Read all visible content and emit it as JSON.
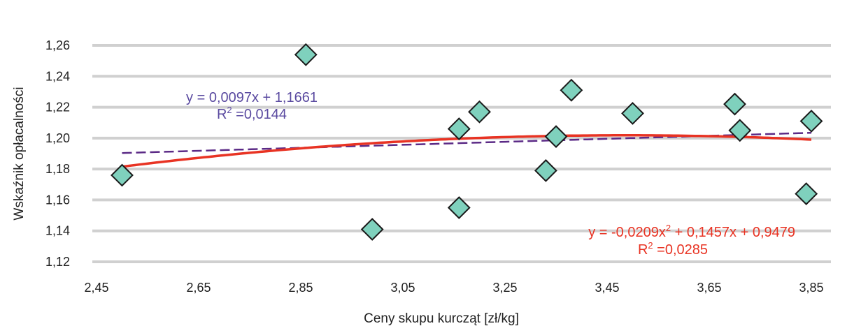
{
  "chart_data": {
    "type": "scatter",
    "xlabel": "Ceny skupu kurcząt [zł/kg]",
    "ylabel": "Wskaźnik opłacalności",
    "xlim": [
      2.45,
      3.87
    ],
    "ylim": [
      1.12,
      1.26
    ],
    "x_ticks": [
      "2,45",
      "2,65",
      "2,85",
      "3,05",
      "3,25",
      "3,45",
      "3,65",
      "3,85"
    ],
    "y_ticks": [
      "1,12",
      "1,14",
      "1,16",
      "1,18",
      "1,20",
      "1,22",
      "1,24",
      "1,26"
    ],
    "grid": "horizontal",
    "marker": {
      "shape": "diamond",
      "fill": "#7fd1bd",
      "stroke": "#1a1a1a"
    },
    "points": [
      {
        "x": 2.5,
        "y": 1.176
      },
      {
        "x": 2.86,
        "y": 1.254
      },
      {
        "x": 2.99,
        "y": 1.141
      },
      {
        "x": 3.16,
        "y": 1.155
      },
      {
        "x": 3.16,
        "y": 1.206
      },
      {
        "x": 3.2,
        "y": 1.217
      },
      {
        "x": 3.33,
        "y": 1.179
      },
      {
        "x": 3.35,
        "y": 1.201
      },
      {
        "x": 3.38,
        "y": 1.231
      },
      {
        "x": 3.5,
        "y": 1.216
      },
      {
        "x": 3.7,
        "y": 1.222
      },
      {
        "x": 3.71,
        "y": 1.205
      },
      {
        "x": 3.84,
        "y": 1.164
      },
      {
        "x": 3.85,
        "y": 1.211
      }
    ],
    "trendlines": [
      {
        "kind": "linear",
        "coefficients": [
          1.1661,
          0.0097
        ],
        "x_range": [
          2.5,
          3.85
        ],
        "color": "#5b2a86",
        "style": "dashed",
        "equation": "y = 0,0097x + 1,1661",
        "r2_prefix": "R",
        "r2_value": " =0,0144",
        "label_color": "#5a4aa0"
      },
      {
        "kind": "polynomial",
        "coefficients": [
          0.9479,
          0.1457,
          -0.0209
        ],
        "x_range": [
          2.5,
          3.85
        ],
        "color": "#e83323",
        "style": "solid",
        "equation_parts": [
          "y = -0,0209x",
          " + 0,1457x + 0,9479"
        ],
        "r2_prefix": "R",
        "r2_value": " =0,0285",
        "label_color": "#e83323"
      }
    ]
  }
}
